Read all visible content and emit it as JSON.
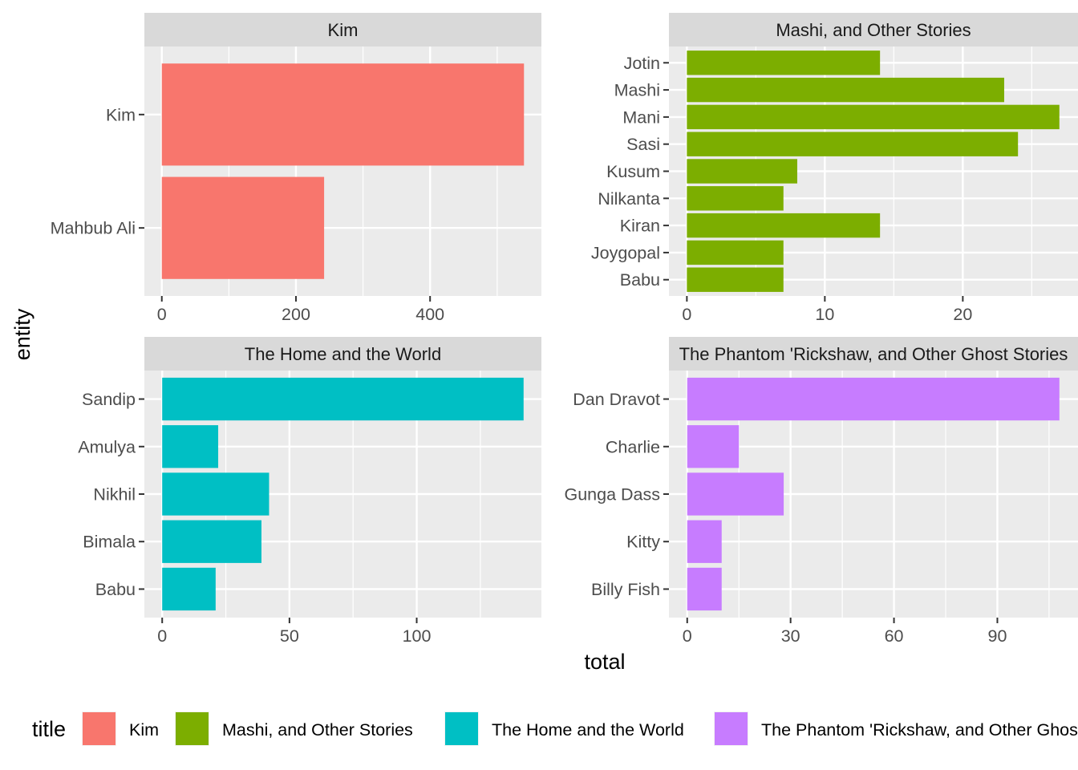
{
  "chart_data": {
    "type": "bar",
    "orientation": "horizontal",
    "xlabel": "total",
    "ylabel": "entity",
    "legend": {
      "title": "title",
      "position": "bottom",
      "entries": [
        {
          "label": "Kim",
          "color": "#F8766D"
        },
        {
          "label": "Mashi, and Other Stories",
          "color": "#7CAE00"
        },
        {
          "label": "The Home and the World",
          "color": "#00BFC4"
        },
        {
          "label": "The Phantom 'Rickshaw, and Other Ghost Stories",
          "color": "#C77CFF"
        }
      ]
    },
    "panels": [
      {
        "title": "Kim",
        "color": "#F8766D",
        "categories": [
          "Kim",
          "Mahbub Ali"
        ],
        "values": [
          540,
          242
        ],
        "xlim": [
          -26,
          566
        ],
        "xticks": [
          0,
          200,
          400
        ],
        "xminor": [
          100,
          300,
          500
        ]
      },
      {
        "title": "Mashi, and Other Stories",
        "color": "#7CAE00",
        "categories": [
          "Jotin",
          "Mashi",
          "Mani",
          "Sasi",
          "Kusum",
          "Nilkanta",
          "Kiran",
          "Joygopal",
          "Babu"
        ],
        "values": [
          14,
          23,
          27,
          24,
          8,
          7,
          14,
          7,
          7
        ],
        "xlim": [
          -1.3,
          28.35
        ],
        "xticks": [
          0,
          10,
          20
        ],
        "xminor": [
          5,
          15,
          25
        ]
      },
      {
        "title": "The Home and the World",
        "color": "#00BFC4",
        "categories": [
          "Sandip",
          "Amulya",
          "Nikhil",
          "Bimala",
          "Babu"
        ],
        "values": [
          142,
          22,
          42,
          39,
          21
        ],
        "xlim": [
          -7,
          149
        ],
        "xticks": [
          0,
          50,
          100
        ],
        "xminor": [
          25,
          75,
          125
        ]
      },
      {
        "title": "The Phantom 'Rickshaw, and Other Ghost Stories",
        "color": "#C77CFF",
        "categories": [
          "Dan Dravot",
          "Charlie",
          "Gunga Dass",
          "Kitty",
          "Billy Fish"
        ],
        "values": [
          108,
          15,
          28,
          10,
          10
        ],
        "xlim": [
          -5.3,
          113.4
        ],
        "xticks": [
          0,
          30,
          60,
          90
        ],
        "xminor": [
          15,
          45,
          75,
          105
        ]
      }
    ]
  }
}
